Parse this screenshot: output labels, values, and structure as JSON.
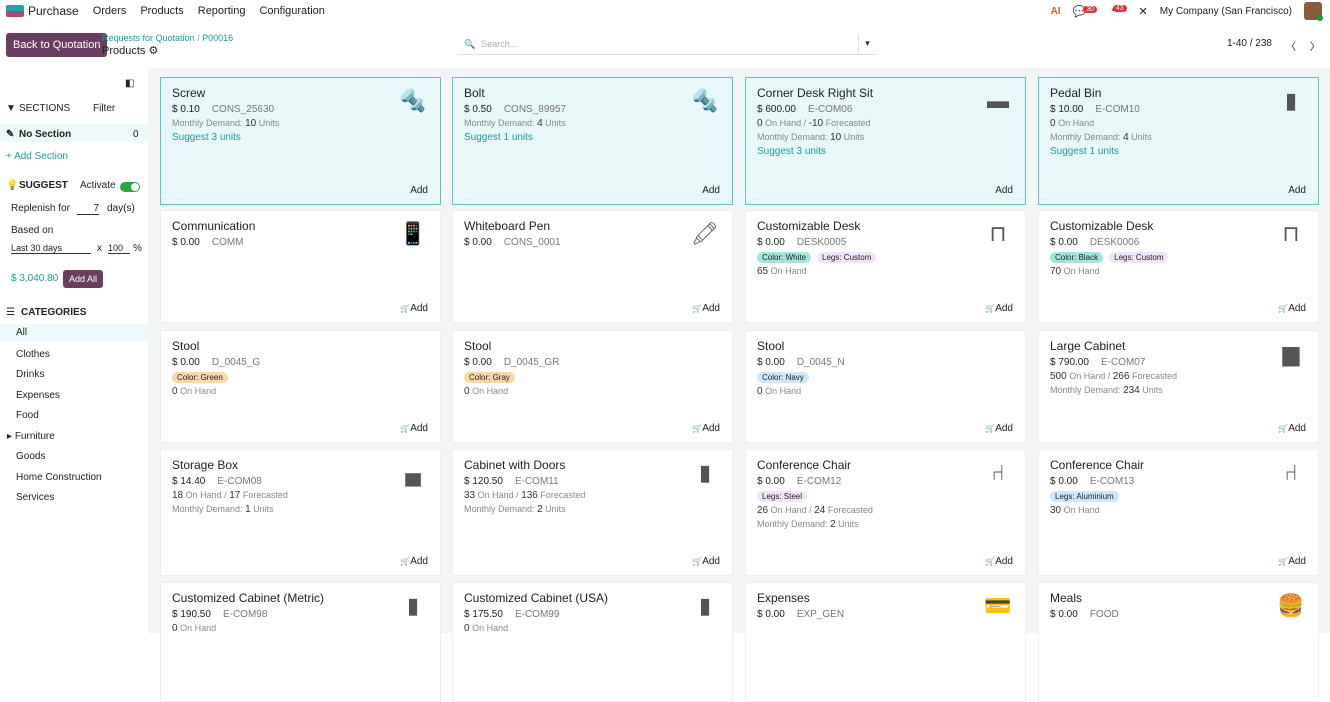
{
  "topbar": {
    "app": "Purchase",
    "menus": [
      "Orders",
      "Products",
      "Reporting",
      "Configuration"
    ],
    "chat_badge": "30",
    "activity_badge": "43",
    "company": "My Company (San Francisco)"
  },
  "control": {
    "back_label": "Back to Quotation",
    "breadcrumb_parent": "Requests for Quotation",
    "breadcrumb_sep": "/",
    "breadcrumb_record": "P00016",
    "page_title": "Products",
    "search_placeholder": "Search...",
    "pager": "1-40 / 238"
  },
  "sidebar": {
    "sections_label": "SECTIONS",
    "filter_label": "Filter",
    "no_section": "No Section",
    "no_section_count": "0",
    "add_section": "+ Add Section",
    "suggest_label": "SUGGEST",
    "activate_label": "Activate",
    "activate_on": true,
    "replenish_label": "Replenish for",
    "replenish_value": "7",
    "days_label": "day(s)",
    "based_on_label": "Based on",
    "based_on_value": "Last 30 days",
    "multiplier_x": "x",
    "percent_value": "100",
    "percent_sign": "%",
    "total": "$ 3,040.80",
    "add_all": "Add All",
    "categories_label": "CATEGORIES",
    "categories": [
      "All",
      "Clothes",
      "Drinks",
      "Expenses",
      "Food",
      "Furniture",
      "Goods",
      "Home Construction",
      "Services"
    ],
    "active_category": "All",
    "expandable_category": "Furniture"
  },
  "colors": {
    "primary": "#6b3d5e",
    "accent": "#1f9a9a",
    "highlight_bg": "#e8f8f8"
  },
  "products": [
    {
      "name": "Screw",
      "price": "$ 0.10",
      "code": "CONS_25630",
      "demand": "10",
      "suggest": "Suggest 3 units",
      "icon": "screw-icon",
      "glyph": "🔩",
      "highlight": true
    },
    {
      "name": "Bolt",
      "price": "$ 0.50",
      "code": "CONS_89957",
      "demand": "4",
      "suggest": "Suggest 1 units",
      "icon": "bolt-icon",
      "glyph": "🔩",
      "highlight": true
    },
    {
      "name": "Corner Desk Right Sit",
      "price": "$ 600.00",
      "code": "E-COM06",
      "on_hand": "0",
      "forecasted": "-10",
      "demand": "10",
      "suggest": "Suggest 3 units",
      "icon": "desk-icon",
      "glyph": "▬",
      "highlight": true
    },
    {
      "name": "Pedal Bin",
      "price": "$ 10.00",
      "code": "E-COM10",
      "on_hand": "0",
      "demand": "4",
      "suggest": "Suggest 1 units",
      "icon": "bin-icon",
      "glyph": "▮",
      "highlight": true
    },
    {
      "name": "Communication",
      "price": "$ 0.00",
      "code": "COMM",
      "icon": "phone-dollar-icon",
      "glyph": "📱"
    },
    {
      "name": "Whiteboard Pen",
      "price": "$ 0.00",
      "code": "CONS_0001",
      "icon": "pen-icon",
      "glyph": "🖍"
    },
    {
      "name": "Customizable Desk",
      "price": "$ 0.00",
      "code": "DESK0005",
      "tags": [
        {
          "label": "Color: White",
          "bg": "#9fe7dd"
        },
        {
          "label": "Legs: Custom",
          "bg": "#f1e4f8"
        }
      ],
      "on_hand": "65",
      "icon": "desk-icon",
      "glyph": "⊓"
    },
    {
      "name": "Customizable Desk",
      "price": "$ 0.00",
      "code": "DESK0006",
      "tags": [
        {
          "label": "Color: Black",
          "bg": "#9fe7dd"
        },
        {
          "label": "Legs: Custom",
          "bg": "#f1e4f8"
        }
      ],
      "on_hand": "70",
      "icon": "desk-icon",
      "glyph": "⊓"
    },
    {
      "name": "Stool",
      "price": "$ 0.00",
      "code": "D_0045_G",
      "tags": [
        {
          "label": "Color: Green",
          "bg": "#fbd7a8"
        }
      ],
      "on_hand": "0",
      "icon": "stool-icon",
      "glyph": ""
    },
    {
      "name": "Stool",
      "price": "$ 0.00",
      "code": "D_0045_GR",
      "tags": [
        {
          "label": "Color: Gray",
          "bg": "#fbd7a8"
        }
      ],
      "on_hand": "0",
      "icon": "stool-icon",
      "glyph": ""
    },
    {
      "name": "Stool",
      "price": "$ 0.00",
      "code": "D_0045_N",
      "tags": [
        {
          "label": "Color: Navy",
          "bg": "#cfe6fb"
        }
      ],
      "on_hand": "0",
      "icon": "stool-icon",
      "glyph": ""
    },
    {
      "name": "Large Cabinet",
      "price": "$ 790.00",
      "code": "E-COM07",
      "on_hand": "500",
      "forecasted": "266",
      "demand": "234",
      "icon": "cabinet-icon",
      "glyph": "▆"
    },
    {
      "name": "Storage Box",
      "price": "$ 14.40",
      "code": "E-COM08",
      "on_hand": "18",
      "forecasted": "17",
      "demand": "1",
      "icon": "box-icon",
      "glyph": "▄"
    },
    {
      "name": "Cabinet with Doors",
      "price": "$ 120.50",
      "code": "E-COM11",
      "on_hand": "33",
      "forecasted": "136",
      "demand": "2",
      "icon": "cabinet-icon",
      "glyph": "▮"
    },
    {
      "name": "Conference Chair",
      "price": "$ 0.00",
      "code": "E-COM12",
      "tags": [
        {
          "label": "Legs: Steel",
          "bg": "#f1e4f8"
        }
      ],
      "on_hand": "26",
      "forecasted": "24",
      "demand": "2",
      "icon": "chair-icon",
      "glyph": "⑁"
    },
    {
      "name": "Conference Chair",
      "price": "$ 0.00",
      "code": "E-COM13",
      "tags": [
        {
          "label": "Legs: Aluminium",
          "bg": "#cfe6fb"
        }
      ],
      "on_hand": "30",
      "icon": "chair-icon",
      "glyph": "⑁"
    },
    {
      "name": "Customized Cabinet (Metric)",
      "price": "$ 190.50",
      "code": "E-COM98",
      "on_hand": "0",
      "icon": "cabinet-icon",
      "glyph": "▮"
    },
    {
      "name": "Customized Cabinet (USA)",
      "price": "$ 175.50",
      "code": "E-COM99",
      "on_hand": "0",
      "icon": "cabinet-icon",
      "glyph": "▮"
    },
    {
      "name": "Expenses",
      "price": "$ 0.00",
      "code": "EXP_GEN",
      "icon": "card-hand-icon",
      "glyph": "💳"
    },
    {
      "name": "Meals",
      "price": "$ 0.00",
      "code": "FOOD",
      "icon": "burger-drink-icon",
      "glyph": "🍔"
    }
  ],
  "labels": {
    "monthly_demand": "Monthly Demand:",
    "units": "Units",
    "on_hand": "On Hand",
    "forecasted": "Forecasted",
    "add": "Add"
  }
}
